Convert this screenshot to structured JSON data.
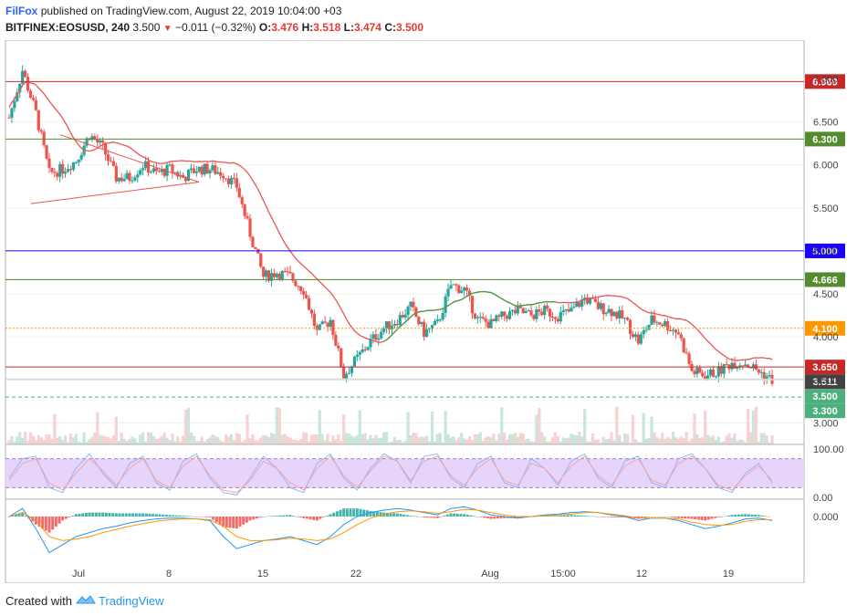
{
  "header": {
    "brand": "FilFox",
    "published_text": "published on TradingView.com, August 22, 2019 10:04:00 +03",
    "symbol": "BITFINEX:EOSUSD, 240",
    "last": "3.500",
    "change": "−0.011 (−0.32%)",
    "o_label": "O:",
    "o_val": "3.476",
    "h_label": "H:",
    "h_val": "3.518",
    "l_label": "L:",
    "l_val": "3.474",
    "c_label": "C:",
    "c_val": "3.500"
  },
  "footer": {
    "created_with": "Created with",
    "logo_text": "TradingView"
  },
  "colors": {
    "up": "#26a69a",
    "down": "#ef5350",
    "ma": "#ef5350",
    "ma_green": "#43a047",
    "red_line": "#c62828",
    "green_line": "#558b2f",
    "blue_line": "#1a00ff",
    "light_green_line": "#8bc34a",
    "orange_line": "#ff9800"
  },
  "chart_data": [
    {
      "type": "candlestick",
      "symbol": "BITFINEX:EOSUSD",
      "interval": "240",
      "y_range": [
        2.75,
        7.45
      ],
      "y_ticks": [
        "7.000",
        "6.500",
        "6.000",
        "5.500",
        "5.000",
        "4.500",
        "4.000",
        "3.500",
        "3.000"
      ],
      "x_labels": [
        "Jul",
        "8",
        "15",
        "22",
        "Aug",
        "15:00",
        "12",
        "19"
      ],
      "series": [
        {
          "name": "close_path",
          "values": [
            6.55,
            7.1,
            6.6,
            5.9,
            5.95,
            6.05,
            6.35,
            6.2,
            5.85,
            5.85,
            6.0,
            5.9,
            5.95,
            5.85,
            5.95,
            5.95,
            5.9,
            5.75,
            5.2,
            4.7,
            4.75,
            4.7,
            4.55,
            4.05,
            4.2,
            3.55,
            3.75,
            3.95,
            4.1,
            4.2,
            4.35,
            4.05,
            4.15,
            4.6,
            4.55,
            4.2,
            4.15,
            4.25,
            4.3,
            4.25,
            4.3,
            4.25,
            4.3,
            4.45,
            4.35,
            4.3,
            4.2,
            3.95,
            4.2,
            4.15,
            4.05,
            3.6,
            3.55,
            3.6,
            3.7,
            3.7,
            3.6,
            3.5
          ],
          "trend_overlay": true
        }
      ],
      "price_levels": [
        {
          "value": "6.969",
          "color": "#c62828"
        },
        {
          "value": "6.300",
          "color": "#558b2f"
        },
        {
          "value": "5.000",
          "color": "#1a00ff"
        },
        {
          "value": "4.666",
          "color": "#558b2f"
        },
        {
          "value": "4.100",
          "color": "#ff9800"
        },
        {
          "value": "3.650",
          "color": "#c62828"
        },
        {
          "value": "3.511",
          "color": "#424242"
        },
        {
          "value": "3.500",
          "color": "#4caf7d"
        },
        {
          "value": "3.300",
          "color": "#4caf7d"
        }
      ],
      "triangle_pattern": {
        "upper": [
          [
            6.35,
            5.8
          ]
        ],
        "lower": [
          [
            5.55,
            5.8
          ]
        ]
      }
    },
    {
      "type": "line",
      "name": "stochastic_rsi",
      "y_ticks": [
        "100.00",
        "0.00"
      ],
      "band": [
        20,
        80
      ],
      "series": [
        {
          "name": "k",
          "values": [
            40,
            80,
            85,
            20,
            10,
            60,
            90,
            50,
            20,
            70,
            85,
            30,
            15,
            75,
            90,
            40,
            10,
            5,
            40,
            85,
            60,
            20,
            10,
            70,
            90,
            40,
            15,
            60,
            90,
            75,
            30,
            85,
            90,
            40,
            20,
            70,
            85,
            30,
            20,
            80,
            60,
            25,
            75,
            90,
            40,
            20,
            75,
            85,
            30,
            20,
            80,
            90,
            60,
            20,
            10,
            50,
            70,
            30
          ]
        },
        {
          "name": "d",
          "values": [
            35,
            70,
            80,
            30,
            15,
            50,
            80,
            55,
            25,
            60,
            80,
            35,
            20,
            65,
            85,
            45,
            15,
            10,
            35,
            75,
            60,
            30,
            15,
            60,
            85,
            45,
            20,
            55,
            85,
            75,
            35,
            75,
            85,
            45,
            25,
            60,
            80,
            35,
            25,
            70,
            60,
            30,
            65,
            85,
            45,
            25,
            65,
            80,
            35,
            25,
            70,
            85,
            60,
            25,
            15,
            45,
            65,
            35
          ]
        }
      ]
    },
    {
      "type": "histogram",
      "name": "macd",
      "y_ticks": [
        "0.000"
      ],
      "series": [
        {
          "name": "macd",
          "values": [
            0.0,
            0.1,
            -0.15,
            -0.45,
            -0.35,
            -0.25,
            -0.2,
            -0.15,
            -0.12,
            -0.08,
            -0.05,
            -0.03,
            -0.02,
            -0.02,
            -0.03,
            -0.05,
            -0.25,
            -0.4,
            -0.35,
            -0.3,
            -0.28,
            -0.25,
            -0.3,
            -0.35,
            -0.25,
            -0.1,
            0.0,
            0.05,
            0.08,
            0.1,
            0.08,
            0.05,
            0.02,
            0.1,
            0.12,
            0.08,
            0.02,
            0.0,
            -0.02,
            0.0,
            0.02,
            0.03,
            0.05,
            0.06,
            0.05,
            0.02,
            0.0,
            -0.05,
            -0.02,
            -0.02,
            -0.05,
            -0.1,
            -0.15,
            -0.12,
            -0.08,
            -0.03,
            -0.02,
            -0.05
          ]
        },
        {
          "name": "signal",
          "values": [
            0.0,
            0.05,
            -0.05,
            -0.25,
            -0.3,
            -0.28,
            -0.25,
            -0.2,
            -0.16,
            -0.12,
            -0.09,
            -0.06,
            -0.04,
            -0.03,
            -0.03,
            -0.04,
            -0.12,
            -0.25,
            -0.3,
            -0.3,
            -0.29,
            -0.27,
            -0.28,
            -0.3,
            -0.28,
            -0.2,
            -0.1,
            -0.02,
            0.03,
            0.06,
            0.07,
            0.06,
            0.04,
            0.06,
            0.09,
            0.08,
            0.05,
            0.02,
            0.0,
            0.0,
            0.01,
            0.02,
            0.03,
            0.05,
            0.05,
            0.03,
            0.01,
            -0.02,
            -0.02,
            -0.02,
            -0.03,
            -0.07,
            -0.1,
            -0.11,
            -0.1,
            -0.06,
            -0.04,
            -0.04
          ]
        }
      ]
    }
  ]
}
